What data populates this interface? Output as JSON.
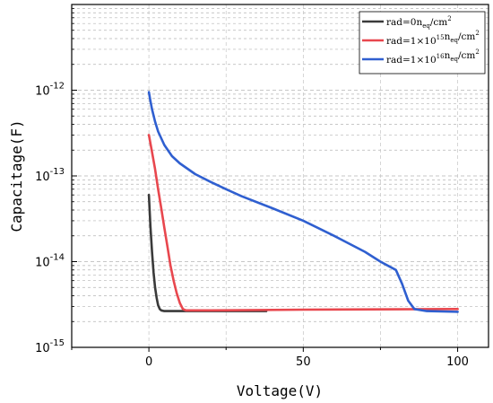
{
  "chart_data": {
    "type": "line",
    "xlabel": "Voltage(V)",
    "ylabel": "Capacitage(F)",
    "xlim": [
      -25,
      110
    ],
    "ylim": [
      1e-15,
      1e-11
    ],
    "y_scale": "log",
    "grid": true,
    "legend_placement": "top-right",
    "x_ticks": [
      {
        "value": 0,
        "label": "0"
      },
      {
        "value": 50,
        "label": "50"
      },
      {
        "value": 100,
        "label": "100"
      }
    ],
    "y_ticks": [
      {
        "value": 1e-15,
        "base": "10",
        "exp": "-15"
      },
      {
        "value": 1e-14,
        "base": "10",
        "exp": "-14"
      },
      {
        "value": 1e-13,
        "base": "10",
        "exp": "-13"
      },
      {
        "value": 1e-12,
        "base": "10",
        "exp": "-12"
      }
    ],
    "series": [
      {
        "color": "#3a3a3a",
        "legend": {
          "text": "rad=0",
          "units_pre": "n",
          "units_sub": "eq",
          "units_post": "/cm",
          "units_sup": "2"
        },
        "x": [
          0,
          0.5,
          1,
          1.5,
          2,
          2.5,
          3,
          3.5,
          4,
          5,
          10,
          20,
          30,
          38
        ],
        "y": [
          6e-14,
          2.6e-14,
          1.3e-14,
          7.5e-15,
          5e-15,
          3.8e-15,
          3.1e-15,
          2.8e-15,
          2.7e-15,
          2.65e-15,
          2.65e-15,
          2.65e-15,
          2.65e-15,
          2.65e-15
        ]
      },
      {
        "color": "#e8474e",
        "legend": {
          "text": "rad=1×10",
          "sup": "15",
          "units_pre": "n",
          "units_sub": "eq",
          "units_post": "/cm",
          "units_sup": "2"
        },
        "x": [
          0,
          1,
          2,
          3,
          4,
          5,
          6,
          7,
          8,
          9,
          10,
          11,
          12,
          15,
          20,
          50,
          100
        ],
        "y": [
          3e-13,
          1.9e-13,
          1.2e-13,
          7e-14,
          4.2e-14,
          2.5e-14,
          1.5e-14,
          9e-15,
          6e-15,
          4.3e-15,
          3.3e-15,
          2.8e-15,
          2.7e-15,
          2.7e-15,
          2.7e-15,
          2.75e-15,
          2.8e-15
        ]
      },
      {
        "color": "#2f5fd0",
        "legend": {
          "text": "rad=1×10",
          "sup": "16",
          "units_pre": "n",
          "units_sub": "eq",
          "units_post": "/cm",
          "units_sup": "2"
        },
        "x": [
          0,
          0.5,
          1,
          2,
          3,
          5,
          7.5,
          10,
          15,
          20,
          25,
          30,
          40,
          50,
          60,
          70,
          75,
          80,
          82,
          84,
          86,
          90,
          100
        ],
        "y": [
          9.5e-13,
          7.5e-13,
          6e-13,
          4.3e-13,
          3.3e-13,
          2.3e-13,
          1.7e-13,
          1.4e-13,
          1.05e-13,
          8.5e-14,
          7e-14,
          5.8e-14,
          4.2e-14,
          3e-14,
          2e-14,
          1.3e-14,
          1e-14,
          8e-15,
          5.5e-15,
          3.5e-15,
          2.8e-15,
          2.65e-15,
          2.6e-15
        ]
      }
    ]
  }
}
